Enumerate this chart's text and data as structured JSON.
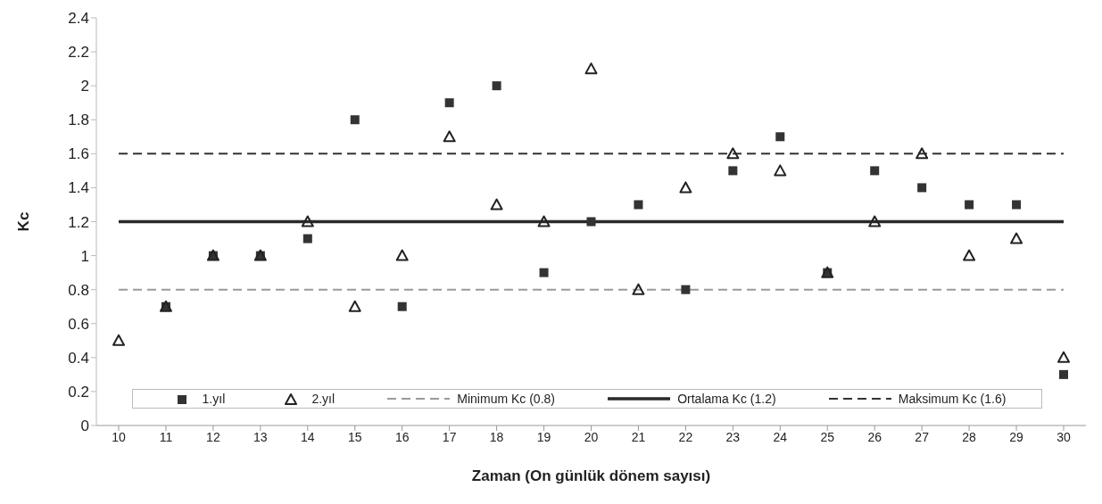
{
  "chart_data": {
    "type": "scatter",
    "xlabel": "Zaman (On günlük dönem sayısı)",
    "ylabel": "Kc",
    "categories": [
      "10",
      "11",
      "12",
      "13",
      "14",
      "15",
      "16",
      "17",
      "18",
      "19",
      "20",
      "21",
      "22",
      "23",
      "24",
      "25",
      "26",
      "27",
      "28",
      "29",
      "30"
    ],
    "series": [
      {
        "name": "1.yıl",
        "color": "#333333",
        "marker": "square",
        "values": [
          null,
          0.7,
          1.0,
          1.0,
          1.1,
          1.8,
          0.7,
          1.9,
          2.0,
          0.9,
          1.2,
          1.3,
          0.8,
          1.5,
          1.7,
          0.9,
          1.5,
          1.4,
          1.3,
          1.3,
          0.3
        ]
      },
      {
        "name": "2.yıl",
        "color": "#222222",
        "marker": "triangle",
        "values": [
          0.5,
          0.7,
          1.0,
          1.0,
          1.2,
          0.7,
          1.0,
          1.7,
          1.3,
          1.2,
          2.1,
          0.8,
          1.4,
          1.6,
          1.5,
          0.9,
          1.2,
          1.6,
          1.0,
          1.1,
          0.4
        ]
      },
      {
        "name": "Minimum Kc (0.8)",
        "type": "line",
        "color": "#9a9a9a",
        "line_style": "dashed",
        "marker": "none",
        "values": [
          0.8,
          0.8,
          0.8,
          0.8,
          0.8,
          0.8,
          0.8,
          0.8,
          0.8,
          0.8,
          0.8,
          0.8,
          0.8,
          0.8,
          0.8,
          0.8,
          0.8,
          0.8,
          0.8,
          0.8,
          0.8
        ]
      },
      {
        "name": "Ortalama Kc (1.2)",
        "type": "line",
        "color": "#2a2a2a",
        "line_style": "solid",
        "marker": "none",
        "values": [
          1.2,
          1.2,
          1.2,
          1.2,
          1.2,
          1.2,
          1.2,
          1.2,
          1.2,
          1.2,
          1.2,
          1.2,
          1.2,
          1.2,
          1.2,
          1.2,
          1.2,
          1.2,
          1.2,
          1.2,
          1.2
        ]
      },
      {
        "name": "Maksimum Kc (1.6)",
        "type": "line",
        "color": "#333333",
        "line_style": "dashed",
        "marker": "none",
        "values": [
          1.6,
          1.6,
          1.6,
          1.6,
          1.6,
          1.6,
          1.6,
          1.6,
          1.6,
          1.6,
          1.6,
          1.6,
          1.6,
          1.6,
          1.6,
          1.6,
          1.6,
          1.6,
          1.6,
          1.6,
          1.6
        ]
      }
    ],
    "ylim": [
      0,
      2.4
    ],
    "yticks": [
      0,
      0.2,
      0.4,
      0.6,
      0.8,
      1,
      1.2,
      1.4,
      1.6,
      1.8,
      2,
      2.2,
      2.4
    ],
    "grid": false,
    "legend": "bottom"
  }
}
